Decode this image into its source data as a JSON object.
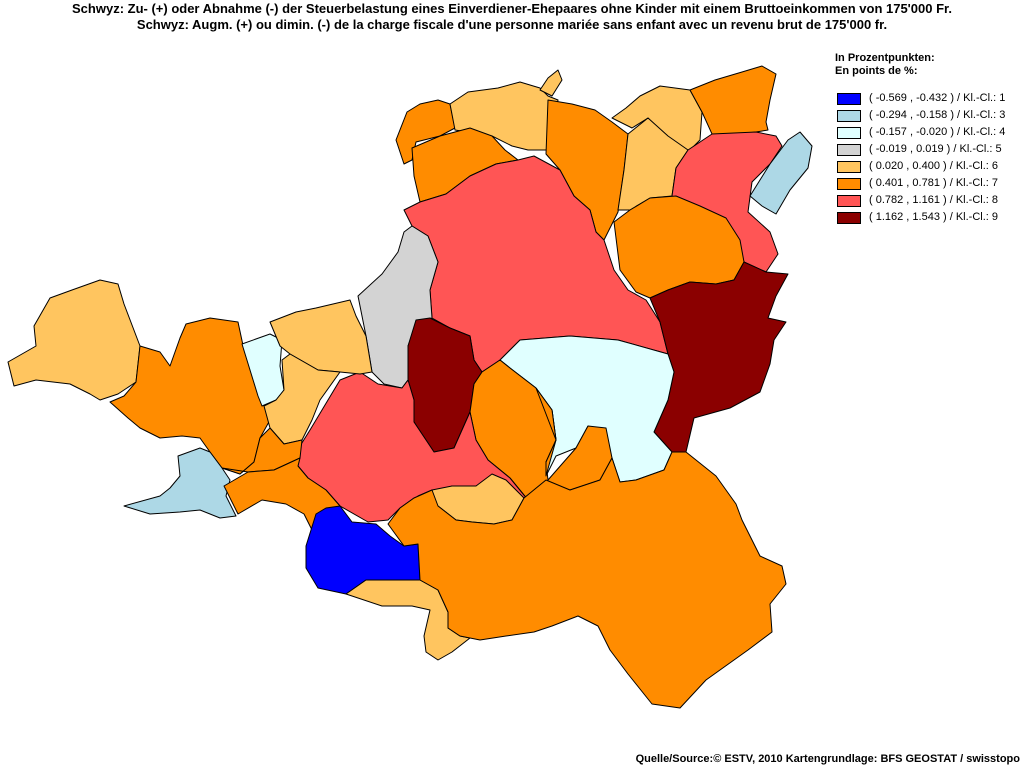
{
  "title_de": "Schwyz: Zu- (+) oder Abnahme (-) der Steuerbelastung eines Einverdiener-Ehepaares ohne Kinder mit einem Bruttoeinkommen von 175'000 Fr.",
  "title_fr": "Schwyz: Augm. (+) ou dimin. (-) de la charge fiscale d'une personne mariée sans enfant avec un revenu brut de 175'000 fr.",
  "legend": {
    "title_de": "In Prozentpunkten:",
    "title_fr": "En points de %:",
    "items": [
      {
        "label": "( -0.569 , -0.432 ) / Kl.-Cl.: 1",
        "color": "#0000ff"
      },
      {
        "label": "( -0.294 , -0.158 ) / Kl.-Cl.: 3",
        "color": "#add8e6"
      },
      {
        "label": "( -0.157 , -0.020 ) / Kl.-Cl.: 4",
        "color": "#e0ffff"
      },
      {
        "label": "( -0.019 , 0.019 ) / Kl.-Cl.: 5",
        "color": "#d3d3d3"
      },
      {
        "label": "( 0.020 , 0.400 ) / Kl.-Cl.: 6",
        "color": "#ffc55f"
      },
      {
        "label": "( 0.401 , 0.781 ) / Kl.-Cl.: 7",
        "color": "#ff8c00"
      },
      {
        "label": "( 0.782 , 1.161 ) / Kl.-Cl.: 8",
        "color": "#ff5555"
      },
      {
        "label": "( 1.162 , 1.543 ) / Kl.-Cl.: 9",
        "color": "#8b0000"
      }
    ]
  },
  "source": "Quelle/Source:© ESTV, 2010 Kartengrundlage: BFS GEOSTAT / swisstopo",
  "regions": [
    {
      "name": "municipality-nw-1",
      "class": 7
    },
    {
      "name": "municipality-nw-2",
      "class": 6
    },
    {
      "name": "municipality-nw-3",
      "class": 7
    },
    {
      "name": "municipality-n-1",
      "class": 7
    },
    {
      "name": "municipality-n-2",
      "class": 6
    },
    {
      "name": "municipality-ne-1",
      "class": 6
    },
    {
      "name": "municipality-ne-2",
      "class": 7
    },
    {
      "name": "municipality-ne-3",
      "class": 6
    },
    {
      "name": "municipality-ne-4",
      "class": 8
    },
    {
      "name": "municipality-ne-5",
      "class": 3
    },
    {
      "name": "municipality-central-north",
      "class": 8
    },
    {
      "name": "municipality-east-1",
      "class": 7
    },
    {
      "name": "municipality-east-2",
      "class": 9
    },
    {
      "name": "municipality-center-gray",
      "class": 5
    },
    {
      "name": "municipality-center-dark",
      "class": 9
    },
    {
      "name": "municipality-center-cyan",
      "class": 4
    },
    {
      "name": "municipality-center-orange",
      "class": 7
    },
    {
      "name": "municipality-center-red",
      "class": 8
    },
    {
      "name": "municipality-west-1",
      "class": 6
    },
    {
      "name": "municipality-west-2",
      "class": 7
    },
    {
      "name": "municipality-west-3",
      "class": 4
    },
    {
      "name": "municipality-west-4",
      "class": 6
    },
    {
      "name": "municipality-west-5",
      "class": 6
    },
    {
      "name": "municipality-west-6",
      "class": 7
    },
    {
      "name": "municipality-west-7",
      "class": 3
    },
    {
      "name": "municipality-west-8",
      "class": 7
    },
    {
      "name": "municipality-south-blue",
      "class": 1
    },
    {
      "name": "municipality-south-1",
      "class": 6
    },
    {
      "name": "municipality-south-2",
      "class": 6
    },
    {
      "name": "municipality-south-main",
      "class": 7
    },
    {
      "name": "municipality-south-3",
      "class": 7
    }
  ]
}
